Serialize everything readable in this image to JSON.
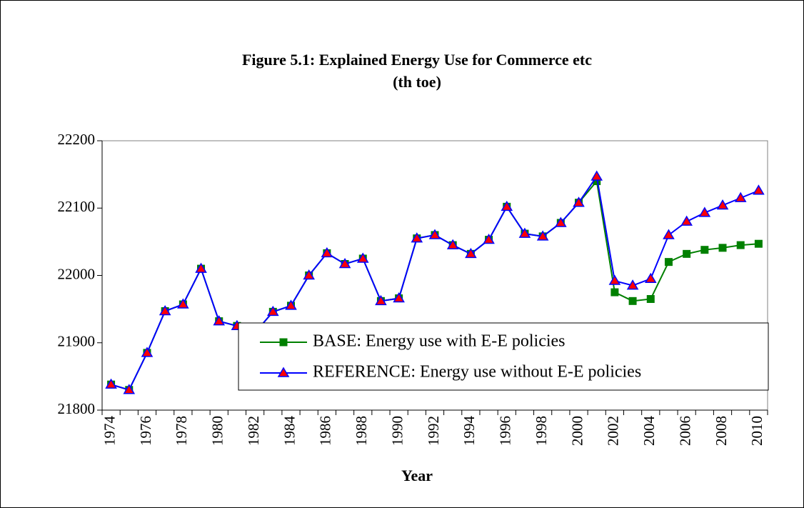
{
  "chart_data": {
    "type": "line",
    "title": "Figure 5.1: Explained Energy Use for Commerce etc",
    "subtitle": "(th toe)",
    "x_label": "Year",
    "categories": [
      "1974",
      null,
      "1976",
      null,
      "1978",
      null,
      "1980",
      null,
      "1982",
      null,
      "1984",
      null,
      "1986",
      null,
      "1988",
      null,
      "1990",
      null,
      "1992",
      null,
      "1994",
      null,
      "1996",
      null,
      "1998",
      null,
      "2000",
      null,
      "2002",
      null,
      "2004",
      null,
      "2006",
      null,
      "2008",
      null,
      "2010"
    ],
    "series": [
      {
        "name": "BASE: Energy use with E-E policies",
        "color": "#008000",
        "marker": "square",
        "marker_fill": "#008000",
        "values": [
          21838,
          21830,
          21885,
          21947,
          21957,
          22010,
          21932,
          21925,
          21915,
          21946,
          21955,
          22000,
          22033,
          22017,
          22025,
          21962,
          21966,
          22055,
          22060,
          22045,
          22032,
          22053,
          22102,
          22062,
          22058,
          22078,
          22108,
          22140,
          21975,
          21962,
          21965,
          22020,
          22032,
          22038,
          22041,
          22045,
          22047
        ]
      },
      {
        "name": "REFERENCE: Energy use without E-E policies",
        "color": "#0000ff",
        "marker": "triangle",
        "marker_fill": "#ff0000",
        "values": [
          21838,
          21830,
          21885,
          21947,
          21957,
          22010,
          21932,
          21925,
          21915,
          21946,
          21955,
          22000,
          22033,
          22017,
          22025,
          21962,
          21966,
          22055,
          22060,
          22045,
          22032,
          22053,
          22102,
          22062,
          22058,
          22078,
          22108,
          22147,
          21992,
          21985,
          21995,
          22060,
          22080,
          22093,
          22104,
          22115,
          22126
        ]
      }
    ],
    "ylim": [
      21800,
      22200
    ],
    "yticks": [
      21800,
      21900,
      22000,
      22100,
      22200
    ],
    "grid": false
  }
}
